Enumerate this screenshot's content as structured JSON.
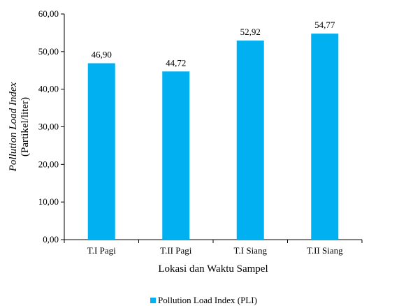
{
  "chart_data": {
    "type": "bar",
    "categories": [
      "T.I Pagi",
      "T.II Pagi",
      "T.I Siang",
      "T.II Siang"
    ],
    "series": [
      {
        "name": "Pollution Load Index (PLI)",
        "values": [
          46.9,
          44.72,
          52.92,
          54.77
        ],
        "data_labels": [
          "46,90",
          "44,72",
          "52,92",
          "54,77"
        ],
        "color": "#00B0F0"
      }
    ],
    "title": "",
    "xlabel": "Lokasi dan Waktu Sampel",
    "ylabel": "Pollution Load Index",
    "ylabel_unit": "(Partikel/liter)",
    "ylim": [
      0,
      60
    ],
    "yticks": [
      0,
      10,
      20,
      30,
      40,
      50,
      60
    ],
    "ytick_labels": [
      "0,00",
      "10,00",
      "20,00",
      "30,00",
      "40,00",
      "50,00",
      "60,00"
    ],
    "grid": false,
    "legend_position": "bottom",
    "legend_label": "Pollution Load Index (PLI)"
  },
  "colors": {
    "bar": "#00B0F0",
    "axis": "#000000"
  }
}
